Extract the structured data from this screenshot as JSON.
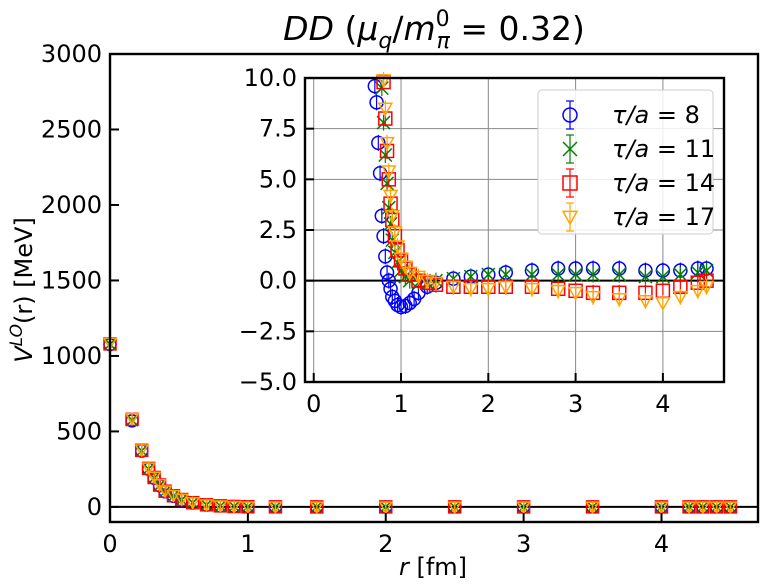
{
  "title": {
    "prefix": "DD",
    "open": " (",
    "mu": "μ",
    "mu_sub": "q",
    "slash": "/",
    "m": "m",
    "m_sup": "0",
    "m_sub": "π",
    "rest": " = 0.32)"
  },
  "ylabel": {
    "v": "V",
    "sup": "LO",
    "rest": "(r) [MeV]"
  },
  "xlabel": {
    "r": "r",
    "unit": " [fm]"
  },
  "chart_data": [
    {
      "id": "main",
      "type": "scatter",
      "xlim": [
        0,
        4.7
      ],
      "ylim": [
        -100,
        3000
      ],
      "xticks": [
        0,
        1,
        2,
        3,
        4
      ],
      "yticks": [
        0,
        500,
        1000,
        1500,
        2000,
        2500,
        3000
      ],
      "xticklabels": [
        "0",
        "1",
        "2",
        "3",
        "4"
      ],
      "yticklabels": [
        "0",
        "500",
        "1000",
        "1500",
        "2000",
        "2500",
        "3000"
      ],
      "grid": false,
      "zero_line": true,
      "series": [
        {
          "name_parts": [
            "τ/a",
            "8"
          ],
          "color": "#0000ff",
          "marker": "circle",
          "x": [
            0.0,
            0.16,
            0.23,
            0.28,
            0.32,
            0.36,
            0.4,
            0.46,
            0.52,
            0.6,
            0.7,
            0.8,
            0.9,
            1.0,
            1.2,
            1.5,
            2.0,
            2.5,
            3.0,
            3.5,
            4.0,
            4.2,
            4.3,
            4.4,
            4.5
          ],
          "y": [
            1075,
            570,
            370,
            250,
            190,
            140,
            100,
            70,
            45,
            25,
            12,
            6,
            3,
            1,
            0.5,
            0,
            0,
            0,
            0,
            0,
            0,
            0,
            0,
            0,
            0
          ]
        },
        {
          "name_parts": [
            "τ/a",
            "11"
          ],
          "color": "#008000",
          "marker": "x",
          "x": [
            0.0,
            0.16,
            0.23,
            0.28,
            0.32,
            0.36,
            0.4,
            0.46,
            0.52,
            0.6,
            0.7,
            0.8,
            0.9,
            1.0,
            1.2,
            1.5,
            2.0,
            2.5,
            3.0,
            3.5,
            4.0,
            4.2,
            4.3,
            4.4,
            4.5
          ],
          "y": [
            1078,
            575,
            372,
            252,
            192,
            142,
            102,
            72,
            47,
            27,
            13,
            6,
            3,
            1,
            0.5,
            0,
            0,
            0,
            0,
            0,
            0,
            0,
            0,
            0,
            0
          ]
        },
        {
          "name_parts": [
            "τ/a",
            "14"
          ],
          "color": "#ff0000",
          "marker": "square",
          "x": [
            0.0,
            0.16,
            0.23,
            0.28,
            0.32,
            0.36,
            0.4,
            0.46,
            0.52,
            0.6,
            0.7,
            0.8,
            0.9,
            1.0,
            1.2,
            1.5,
            2.0,
            2.5,
            3.0,
            3.5,
            4.0,
            4.2,
            4.3,
            4.4,
            4.5
          ],
          "y": [
            1080,
            580,
            375,
            255,
            195,
            145,
            104,
            74,
            49,
            28,
            14,
            7,
            3,
            1,
            0.5,
            0,
            0,
            0,
            0,
            0,
            0,
            0,
            0,
            0,
            0
          ]
        },
        {
          "name_parts": [
            "τ/a",
            "17"
          ],
          "color": "#ffa500",
          "marker": "triangle_down",
          "x": [
            0.0,
            0.16,
            0.23,
            0.28,
            0.32,
            0.36,
            0.4,
            0.46,
            0.52,
            0.6,
            0.7,
            0.8,
            0.9,
            1.0,
            1.2,
            1.5,
            2.0,
            2.5,
            3.0,
            3.5,
            4.0,
            4.2,
            4.3,
            4.4,
            4.5
          ],
          "y": [
            1085,
            585,
            378,
            258,
            198,
            148,
            106,
            76,
            51,
            29,
            15,
            7,
            3,
            1,
            0.5,
            0,
            0,
            0,
            0,
            0,
            0,
            0,
            0,
            0,
            0
          ]
        }
      ]
    },
    {
      "id": "inset",
      "type": "scatter",
      "xlim": [
        -0.1,
        4.7
      ],
      "ylim": [
        -5,
        10
      ],
      "xticks": [
        0,
        1,
        2,
        3,
        4
      ],
      "yticks": [
        -5,
        -2.5,
        0,
        2.5,
        5,
        7.5,
        10
      ],
      "xticklabels": [
        "0",
        "1",
        "2",
        "3",
        "4"
      ],
      "yticklabels": [
        "−5.0",
        "−2.5",
        "0.0",
        "2.5",
        "5.0",
        "7.5",
        "10.0"
      ],
      "grid": true,
      "zero_line": true,
      "legend": "top-right",
      "series": [
        {
          "name_parts": [
            "τ/a",
            "8"
          ],
          "color": "#0000ff",
          "marker": "circle",
          "x": [
            0.7,
            0.72,
            0.74,
            0.76,
            0.78,
            0.8,
            0.82,
            0.84,
            0.86,
            0.88,
            0.9,
            0.93,
            0.96,
            1.0,
            1.05,
            1.1,
            1.15,
            1.2,
            1.3,
            1.4,
            1.6,
            1.8,
            2.0,
            2.2,
            2.5,
            2.8,
            3.0,
            3.2,
            3.5,
            3.8,
            4.0,
            4.2,
            4.4,
            4.5
          ],
          "y": [
            9.6,
            8.8,
            6.8,
            5.3,
            3.2,
            2.2,
            1.2,
            0.4,
            0.0,
            -0.4,
            -0.8,
            -1.0,
            -1.2,
            -1.3,
            -1.25,
            -1.1,
            -0.9,
            -0.6,
            -0.3,
            -0.1,
            0.1,
            0.2,
            0.3,
            0.4,
            0.5,
            0.6,
            0.6,
            0.6,
            0.6,
            0.5,
            0.5,
            0.5,
            0.6,
            0.6
          ]
        },
        {
          "name_parts": [
            "τ/a",
            "11"
          ],
          "color": "#008000",
          "marker": "x",
          "x": [
            0.78,
            0.8,
            0.82,
            0.84,
            0.86,
            0.88,
            0.9,
            0.93,
            0.96,
            1.0,
            1.05,
            1.1,
            1.2,
            1.3,
            1.4,
            1.6,
            1.8,
            2.0,
            2.2,
            2.5,
            2.8,
            3.0,
            3.2,
            3.5,
            3.8,
            4.0,
            4.2,
            4.4,
            4.5
          ],
          "y": [
            9.5,
            7.8,
            6.2,
            4.8,
            3.6,
            2.8,
            2.0,
            1.4,
            0.9,
            0.5,
            0.2,
            0.0,
            -0.1,
            -0.1,
            0.0,
            0.1,
            0.2,
            0.3,
            0.3,
            0.3,
            0.3,
            0.3,
            0.3,
            0.3,
            0.2,
            0.2,
            0.3,
            0.4,
            0.5
          ]
        },
        {
          "name_parts": [
            "τ/a",
            "14"
          ],
          "color": "#ff0000",
          "marker": "square",
          "x": [
            0.8,
            0.82,
            0.84,
            0.86,
            0.88,
            0.9,
            0.93,
            0.96,
            1.0,
            1.05,
            1.1,
            1.2,
            1.3,
            1.4,
            1.6,
            1.8,
            2.0,
            2.2,
            2.5,
            2.8,
            3.0,
            3.2,
            3.5,
            3.8,
            4.0,
            4.2,
            4.4,
            4.5
          ],
          "y": [
            9.8,
            8.0,
            6.4,
            5.0,
            3.8,
            3.0,
            2.2,
            1.5,
            1.0,
            0.6,
            0.3,
            0.0,
            -0.1,
            -0.2,
            -0.3,
            -0.3,
            -0.3,
            -0.3,
            -0.3,
            -0.4,
            -0.5,
            -0.6,
            -0.6,
            -0.6,
            -0.5,
            -0.3,
            -0.1,
            0.0
          ]
        },
        {
          "name_parts": [
            "τ/a",
            "17"
          ],
          "color": "#ffa500",
          "marker": "triangle_down",
          "x": [
            0.8,
            0.82,
            0.84,
            0.86,
            0.88,
            0.9,
            0.93,
            0.96,
            1.0,
            1.05,
            1.1,
            1.2,
            1.3,
            1.4,
            1.6,
            1.8,
            2.0,
            2.2,
            2.5,
            2.8,
            3.0,
            3.2,
            3.5,
            3.8,
            4.0,
            4.2,
            4.4,
            4.5
          ],
          "y": [
            9.9,
            8.5,
            6.8,
            5.4,
            4.2,
            3.2,
            2.4,
            1.7,
            1.1,
            0.7,
            0.4,
            0.2,
            0.0,
            -0.1,
            -0.3,
            -0.4,
            -0.4,
            -0.3,
            -0.4,
            -0.5,
            -0.6,
            -0.8,
            -0.9,
            -1.0,
            -1.1,
            -0.8,
            -0.5,
            -0.3
          ]
        }
      ]
    }
  ]
}
